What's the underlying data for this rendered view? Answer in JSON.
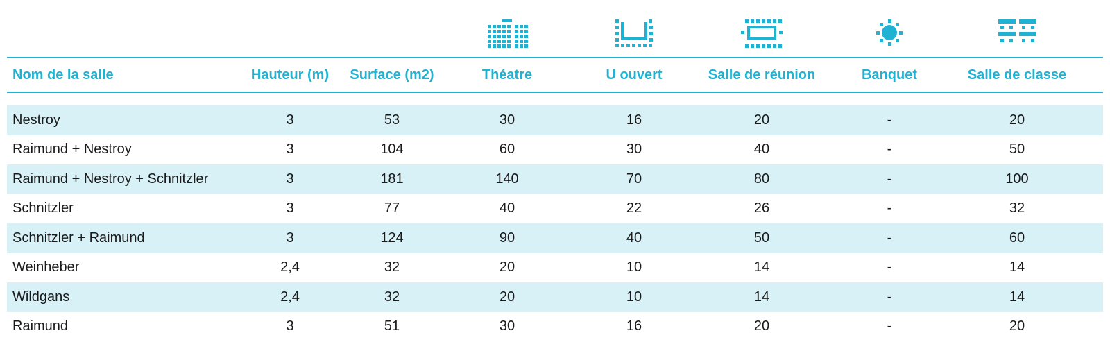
{
  "colors": {
    "accent": "#1fb2d2",
    "row_alt": "#d8f1f7",
    "text": "#1a1a1a"
  },
  "icons": [
    {
      "col": "theatre",
      "name": "theatre-layout-icon"
    },
    {
      "col": "u_ouvert",
      "name": "u-shape-layout-icon"
    },
    {
      "col": "reunion",
      "name": "boardroom-layout-icon"
    },
    {
      "col": "banquet",
      "name": "banquet-layout-icon"
    },
    {
      "col": "classe",
      "name": "classroom-layout-icon"
    }
  ],
  "table": {
    "headers": {
      "nom": "Nom de la salle",
      "hauteur": "Hauteur (m)",
      "surface": "Surface (m2)",
      "theatre": "Théatre",
      "u_ouvert": "U ouvert",
      "reunion": "Salle de réunion",
      "banquet": "Banquet",
      "classe": "Salle de classe"
    },
    "rows": [
      {
        "nom": "Nestroy",
        "hauteur": "3",
        "surface": "53",
        "theatre": "30",
        "u_ouvert": "16",
        "reunion": "20",
        "banquet": "-",
        "classe": "20"
      },
      {
        "nom": "Raimund + Nestroy",
        "hauteur": "3",
        "surface": "104",
        "theatre": "60",
        "u_ouvert": "30",
        "reunion": "40",
        "banquet": "-",
        "classe": "50"
      },
      {
        "nom": "Raimund + Nestroy + Schnitzler",
        "hauteur": "3",
        "surface": "181",
        "theatre": "140",
        "u_ouvert": "70",
        "reunion": "80",
        "banquet": "-",
        "classe": "100"
      },
      {
        "nom": "Schnitzler",
        "hauteur": "3",
        "surface": "77",
        "theatre": "40",
        "u_ouvert": "22",
        "reunion": "26",
        "banquet": "-",
        "classe": "32"
      },
      {
        "nom": "Schnitzler + Raimund",
        "hauteur": "3",
        "surface": "124",
        "theatre": "90",
        "u_ouvert": "40",
        "reunion": "50",
        "banquet": "-",
        "classe": "60"
      },
      {
        "nom": "Weinheber",
        "hauteur": "2,4",
        "surface": "32",
        "theatre": "20",
        "u_ouvert": "10",
        "reunion": "14",
        "banquet": "-",
        "classe": "14"
      },
      {
        "nom": "Wildgans",
        "hauteur": "2,4",
        "surface": "32",
        "theatre": "20",
        "u_ouvert": "10",
        "reunion": "14",
        "banquet": "-",
        "classe": "14"
      },
      {
        "nom": "Raimund",
        "hauteur": "3",
        "surface": "51",
        "theatre": "30",
        "u_ouvert": "16",
        "reunion": "20",
        "banquet": "-",
        "classe": "20"
      }
    ]
  }
}
